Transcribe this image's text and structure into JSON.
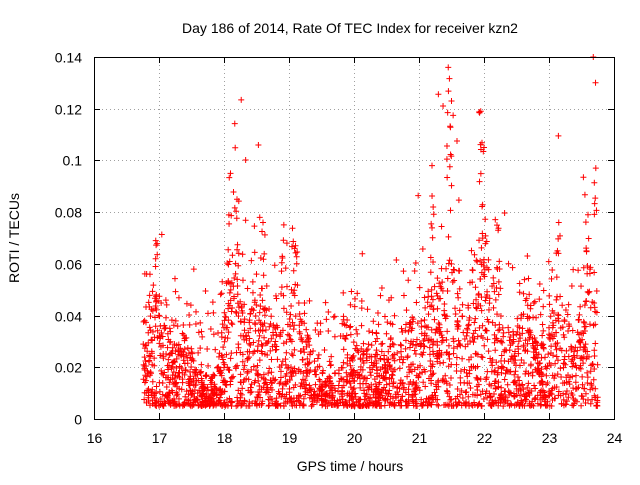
{
  "chart_data": {
    "type": "scatter",
    "title": "Day 186 of 2014, Rate Of TEC Index for receiver kzn2",
    "xlabel": "GPS time / hours",
    "ylabel": "ROTI / TECUs",
    "xlim": [
      16,
      24
    ],
    "ylim": [
      0,
      0.14
    ],
    "xticks": [
      "16",
      "17",
      "18",
      "19",
      "20",
      "21",
      "22",
      "23",
      "24"
    ],
    "yticks": [
      "0",
      "0.02",
      "0.04",
      "0.06",
      "0.08",
      "0.1",
      "0.12",
      "0.14"
    ],
    "grid": true,
    "marker": "+",
    "color": "#ff0000",
    "series": [
      {
        "name": "ROTI",
        "x_range": [
          16.75,
          23.75
        ],
        "typical_range": [
          0.005,
          0.04
        ],
        "peaks": [
          {
            "x": 16.95,
            "y": 0.069
          },
          {
            "x": 18.1,
            "y": 0.095
          },
          {
            "x": 18.2,
            "y": 0.085
          },
          {
            "x": 18.6,
            "y": 0.076
          },
          {
            "x": 19.1,
            "y": 0.067
          },
          {
            "x": 21.2,
            "y": 0.098
          },
          {
            "x": 21.45,
            "y": 0.136
          },
          {
            "x": 21.5,
            "y": 0.123
          },
          {
            "x": 21.95,
            "y": 0.119
          },
          {
            "x": 22.0,
            "y": 0.105
          },
          {
            "x": 22.2,
            "y": 0.075
          },
          {
            "x": 23.15,
            "y": 0.076
          },
          {
            "x": 23.6,
            "y": 0.079
          },
          {
            "x": 23.72,
            "y": 0.097
          }
        ]
      }
    ]
  }
}
